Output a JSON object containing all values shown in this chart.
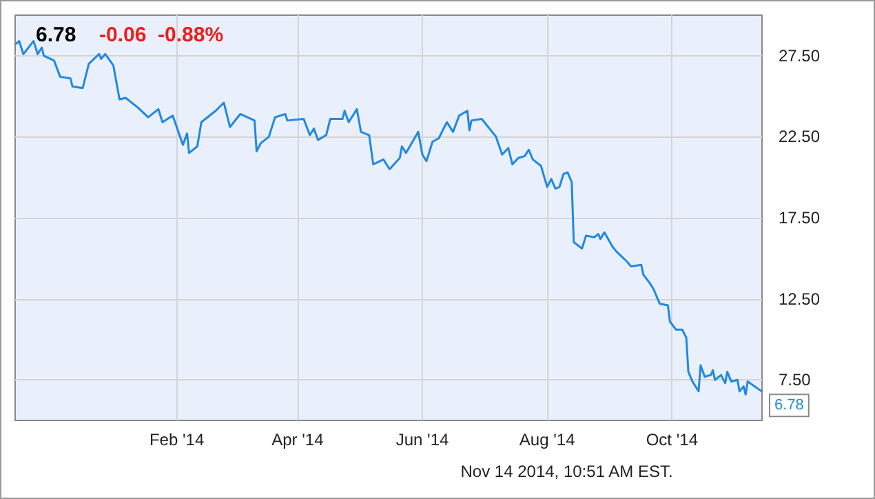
{
  "chart_data": {
    "type": "line",
    "title": "6.78",
    "subtitle": "-0.06  -0.88%",
    "annotations": [
      {
        "text": "6.78",
        "x": "2014-11-14",
        "y": 6.78
      },
      "Nov 14 2014, 10:51 AM EST."
    ],
    "x": [
      "2013-11-14",
      "2013-11-16",
      "2013-11-18",
      "2013-11-23",
      "2013-11-25",
      "2013-11-27",
      "2013-11-28",
      "2013-12-03",
      "2013-12-06",
      "2013-12-11",
      "2013-12-12",
      "2013-12-17",
      "2013-12-20",
      "2013-12-25",
      "2013-12-26",
      "2013-12-28",
      "2014-01-01",
      "2014-01-04",
      "2014-01-07",
      "2014-01-13",
      "2014-01-18",
      "2014-01-23",
      "2014-01-25",
      "2014-01-30",
      "2014-02-04",
      "2014-02-06",
      "2014-02-07",
      "2014-02-11",
      "2014-02-13",
      "2014-02-20",
      "2014-02-24",
      "2014-02-27",
      "2014-03-04",
      "2014-03-11",
      "2014-03-12",
      "2014-03-14",
      "2014-03-18",
      "2014-03-21",
      "2014-03-26",
      "2014-03-27",
      "2014-04-04",
      "2014-04-07",
      "2014-04-09",
      "2014-04-11",
      "2014-04-15",
      "2014-04-17",
      "2014-04-23",
      "2014-04-24",
      "2014-04-26",
      "2014-04-30",
      "2014-05-02",
      "2014-05-06",
      "2014-05-08",
      "2014-05-13",
      "2014-05-16",
      "2014-05-21",
      "2014-05-22",
      "2014-05-24",
      "2014-05-30",
      "2014-06-01",
      "2014-06-03",
      "2014-06-06",
      "2014-06-09",
      "2014-06-13",
      "2014-06-16",
      "2014-06-19",
      "2014-06-23",
      "2014-06-24",
      "2014-06-25",
      "2014-06-30",
      "2014-07-07",
      "2014-07-10",
      "2014-07-13",
      "2014-07-15",
      "2014-07-18",
      "2014-07-21",
      "2014-07-23",
      "2014-07-25",
      "2014-07-29",
      "2014-08-01",
      "2014-08-03",
      "2014-08-05",
      "2014-08-07",
      "2014-08-09",
      "2014-08-11",
      "2014-08-13",
      "2014-08-14",
      "2014-08-18",
      "2014-08-20",
      "2014-08-24",
      "2014-08-26",
      "2014-08-27",
      "2014-08-29",
      "2014-09-02",
      "2014-09-04",
      "2014-09-09",
      "2014-09-11",
      "2014-09-16",
      "2014-09-17",
      "2014-09-20",
      "2014-09-22",
      "2014-09-25",
      "2014-09-29",
      "2014-09-30",
      "2014-10-03",
      "2014-10-06",
      "2014-10-08",
      "2014-10-09",
      "2014-10-11",
      "2014-10-14",
      "2014-10-15",
      "2014-10-17",
      "2014-10-20",
      "2014-10-21",
      "2014-10-22",
      "2014-10-25",
      "2014-10-27",
      "2014-10-28",
      "2014-10-30",
      "2014-11-02",
      "2014-11-03",
      "2014-11-05",
      "2014-11-06",
      "2014-11-07",
      "2014-11-14"
    ],
    "values": [
      28.2,
      28.4,
      27.6,
      28.4,
      27.6,
      28.0,
      27.5,
      27.2,
      26.2,
      26.1,
      25.6,
      25.5,
      27.0,
      27.6,
      27.3,
      27.6,
      26.9,
      24.8,
      24.9,
      24.3,
      23.7,
      24.2,
      23.4,
      23.8,
      22.0,
      22.7,
      21.5,
      21.9,
      23.4,
      24.1,
      24.6,
      23.1,
      23.9,
      23.5,
      21.6,
      22.1,
      22.5,
      23.7,
      23.9,
      23.5,
      23.6,
      22.6,
      23.0,
      22.3,
      22.6,
      23.6,
      23.6,
      24.1,
      23.4,
      24.2,
      22.8,
      22.6,
      20.8,
      21.1,
      20.5,
      21.2,
      21.9,
      21.5,
      22.8,
      21.4,
      21.0,
      22.2,
      22.4,
      23.4,
      22.8,
      23.8,
      24.1,
      22.9,
      23.5,
      23.6,
      22.5,
      21.4,
      21.8,
      20.8,
      21.2,
      21.3,
      21.7,
      21.1,
      20.7,
      19.4,
      19.9,
      19.3,
      19.4,
      20.2,
      20.3,
      19.7,
      16.0,
      15.6,
      16.4,
      16.3,
      16.5,
      16.2,
      16.6,
      15.7,
      15.4,
      14.8,
      14.5,
      14.6,
      14.0,
      13.5,
      13.1,
      12.2,
      12.1,
      11.1,
      10.6,
      10.6,
      10.1,
      8.0,
      7.4,
      6.8,
      8.4,
      7.7,
      7.8,
      8.1,
      7.5,
      7.8,
      7.3,
      8.0,
      7.4,
      7.5,
      6.8,
      7.1,
      6.6,
      7.4,
      6.78
    ],
    "color": "#2088e6",
    "xlim": [
      "2013-11-14",
      "2014-11-14"
    ],
    "xticks": [
      {
        "value": "2014-02-01",
        "label": "Feb '14"
      },
      {
        "value": "2014-04-01",
        "label": "Apr '14"
      },
      {
        "value": "2014-06-01",
        "label": "Jun '14"
      },
      {
        "value": "2014-08-01",
        "label": "Aug '14"
      },
      {
        "value": "2014-10-01",
        "label": "Oct '14"
      }
    ],
    "ylim": [
      5,
      30
    ],
    "yticks": [
      {
        "value": 7.5,
        "label": "7.50"
      },
      {
        "value": 12.5,
        "label": "12.50"
      },
      {
        "value": 17.5,
        "label": "17.50"
      },
      {
        "value": 22.5,
        "label": "22.50"
      },
      {
        "value": 27.5,
        "label": "27.50"
      }
    ],
    "grid": true,
    "marker": "none"
  }
}
